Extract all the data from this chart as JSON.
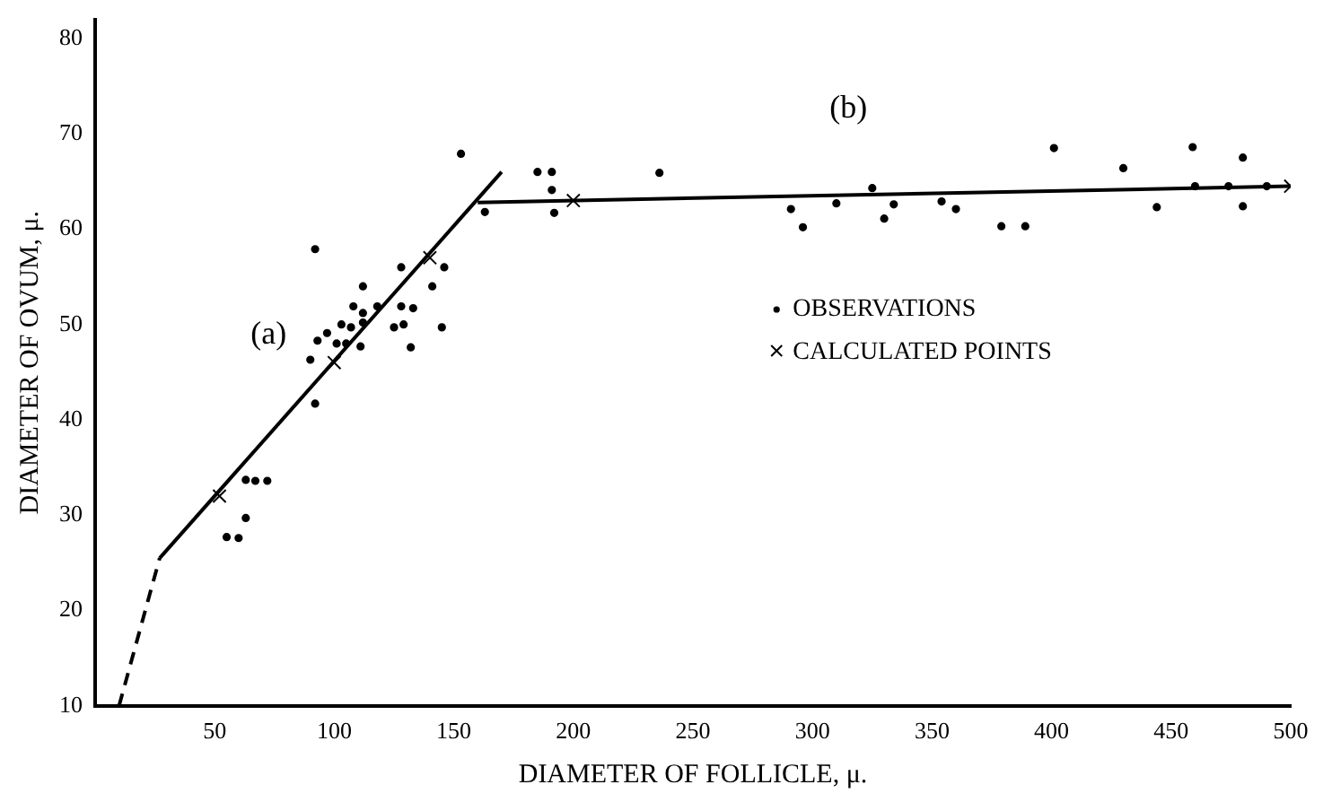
{
  "chart_data": {
    "type": "scatter",
    "xlabel": "DIAMETER OF FOLLICLE, μ.",
    "ylabel": "DIAMETER OF OVUM, μ.",
    "xlim": [
      0,
      500
    ],
    "xticks": [
      50,
      100,
      150,
      200,
      250,
      300,
      350,
      400,
      450,
      500
    ],
    "ylim": [
      10,
      82
    ],
    "yticks": [
      10,
      20,
      30,
      40,
      50,
      60,
      70,
      80
    ],
    "grid": false,
    "legend": "right",
    "annotations": [
      "(a)",
      "(b)"
    ],
    "series": [
      {
        "type": "scatter",
        "name": "OBSERVATIONS",
        "color": "#000000",
        "marker": "circle",
        "x": [
          92,
          90,
          93,
          97,
          103,
          107,
          101,
          105,
          111,
          108,
          112,
          112,
          112,
          118,
          125,
          128,
          128,
          129,
          133,
          132,
          141,
          146,
          145,
          92,
          63,
          67,
          72,
          63,
          55,
          60,
          163,
          153,
          185,
          191,
          191,
          192,
          236,
          291,
          296,
          310,
          325,
          334,
          330,
          354,
          360,
          379,
          389,
          401,
          430,
          444,
          459,
          460,
          474,
          480,
          480,
          490
        ],
        "values": [
          57.9,
          46.3,
          48.3,
          49.1,
          50.0,
          49.7,
          48.0,
          48.0,
          47.7,
          51.9,
          54.0,
          51.2,
          50.2,
          51.9,
          49.7,
          56.0,
          51.9,
          50.0,
          51.7,
          47.6,
          54.0,
          56.0,
          49.7,
          41.7,
          33.7,
          33.6,
          33.6,
          29.7,
          27.7,
          27.6,
          61.8,
          67.9,
          66.0,
          66.0,
          64.1,
          61.7,
          65.9,
          62.1,
          60.2,
          62.7,
          64.3,
          62.6,
          61.1,
          62.9,
          62.1,
          60.3,
          60.3,
          68.5,
          66.4,
          62.3,
          68.6,
          64.5,
          64.5,
          67.5,
          62.4,
          64.5
        ]
      },
      {
        "type": "scatter",
        "name": "CALCULATED POINTS",
        "color": "#000000",
        "marker": "cross",
        "x": [
          52,
          100,
          140,
          200,
          500
        ],
        "values": [
          32,
          46,
          57,
          63,
          64.5
        ]
      },
      {
        "type": "line",
        "color": "#000000",
        "line_style": "dashed",
        "marker": "none",
        "x": [
          10,
          27
        ],
        "values": [
          10,
          25.5
        ]
      },
      {
        "type": "line",
        "color": "#000000",
        "line_style": "solid",
        "marker": "none",
        "x": [
          27,
          170
        ],
        "values": [
          25.5,
          66
        ]
      },
      {
        "type": "line",
        "color": "#000000",
        "line_style": "solid",
        "marker": "none",
        "x": [
          160,
          500
        ],
        "values": [
          62.8,
          64.5
        ]
      }
    ]
  }
}
